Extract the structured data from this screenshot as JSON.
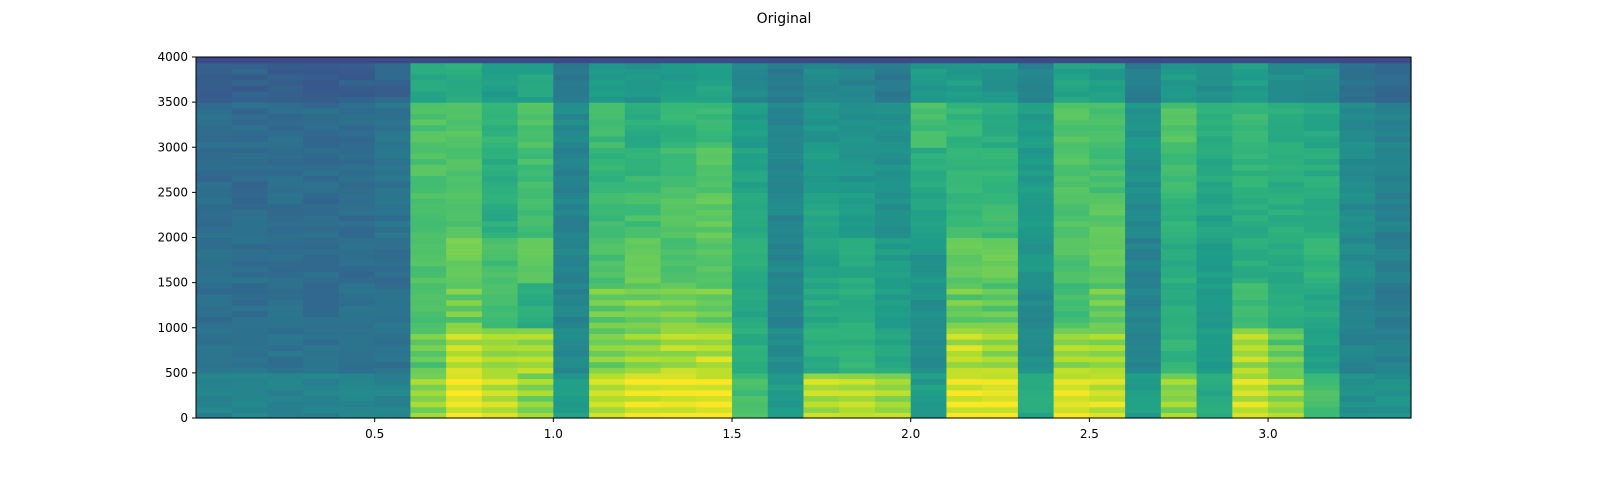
{
  "chart_data": {
    "type": "heatmap",
    "title": "Original",
    "xlabel": "",
    "ylabel": "",
    "xlim": [
      0,
      3.4
    ],
    "ylim": [
      0,
      4000
    ],
    "xticks": [
      0.5,
      1.0,
      1.5,
      2.0,
      2.5,
      3.0
    ],
    "xtick_labels": [
      "0.5",
      "1.0",
      "1.5",
      "2.0",
      "2.5",
      "3.0"
    ],
    "yticks": [
      0,
      500,
      1000,
      1500,
      2000,
      2500,
      3000,
      3500,
      4000
    ],
    "ytick_labels": [
      "0",
      "500",
      "1000",
      "1500",
      "2000",
      "2500",
      "3000",
      "3500",
      "4000"
    ],
    "colormap": "viridis",
    "time_bin_s": 0.1,
    "freq_band_hz": 500,
    "value_scale": "normalized intensity 0-1",
    "intensity": [
      [
        0.45,
        0.38,
        0.36,
        0.36,
        0.36,
        0.35,
        0.36,
        0.3
      ],
      [
        0.45,
        0.38,
        0.36,
        0.36,
        0.35,
        0.35,
        0.35,
        0.3
      ],
      [
        0.45,
        0.38,
        0.36,
        0.35,
        0.35,
        0.35,
        0.35,
        0.3
      ],
      [
        0.45,
        0.37,
        0.36,
        0.35,
        0.35,
        0.35,
        0.35,
        0.3
      ],
      [
        0.45,
        0.37,
        0.36,
        0.35,
        0.35,
        0.35,
        0.35,
        0.3
      ],
      [
        0.45,
        0.38,
        0.37,
        0.36,
        0.38,
        0.38,
        0.38,
        0.32
      ],
      [
        0.8,
        0.72,
        0.7,
        0.72,
        0.72,
        0.72,
        0.72,
        0.6
      ],
      [
        0.92,
        0.85,
        0.72,
        0.78,
        0.72,
        0.72,
        0.72,
        0.62
      ],
      [
        0.88,
        0.82,
        0.7,
        0.7,
        0.62,
        0.62,
        0.65,
        0.55
      ],
      [
        0.78,
        0.82,
        0.62,
        0.76,
        0.68,
        0.7,
        0.72,
        0.58
      ],
      [
        0.55,
        0.48,
        0.45,
        0.45,
        0.45,
        0.45,
        0.48,
        0.4
      ],
      [
        0.88,
        0.75,
        0.72,
        0.7,
        0.68,
        0.66,
        0.68,
        0.55
      ],
      [
        0.92,
        0.8,
        0.74,
        0.78,
        0.7,
        0.66,
        0.62,
        0.52
      ],
      [
        0.92,
        0.82,
        0.76,
        0.72,
        0.72,
        0.7,
        0.65,
        0.55
      ],
      [
        0.93,
        0.85,
        0.72,
        0.74,
        0.75,
        0.72,
        0.68,
        0.58
      ],
      [
        0.7,
        0.62,
        0.6,
        0.62,
        0.6,
        0.58,
        0.55,
        0.48
      ],
      [
        0.55,
        0.48,
        0.45,
        0.46,
        0.46,
        0.45,
        0.45,
        0.42
      ],
      [
        0.85,
        0.62,
        0.6,
        0.58,
        0.58,
        0.55,
        0.52,
        0.48
      ],
      [
        0.85,
        0.65,
        0.62,
        0.6,
        0.55,
        0.52,
        0.5,
        0.45
      ],
      [
        0.82,
        0.6,
        0.55,
        0.55,
        0.5,
        0.5,
        0.5,
        0.4
      ],
      [
        0.55,
        0.5,
        0.5,
        0.52,
        0.58,
        0.62,
        0.7,
        0.55
      ],
      [
        0.92,
        0.85,
        0.72,
        0.75,
        0.68,
        0.65,
        0.65,
        0.55
      ],
      [
        0.92,
        0.82,
        0.72,
        0.78,
        0.68,
        0.66,
        0.62,
        0.52
      ],
      [
        0.6,
        0.5,
        0.48,
        0.52,
        0.55,
        0.55,
        0.55,
        0.45
      ],
      [
        0.9,
        0.8,
        0.7,
        0.72,
        0.72,
        0.72,
        0.72,
        0.58
      ],
      [
        0.88,
        0.8,
        0.72,
        0.75,
        0.74,
        0.7,
        0.7,
        0.55
      ],
      [
        0.55,
        0.45,
        0.45,
        0.45,
        0.48,
        0.5,
        0.52,
        0.42
      ],
      [
        0.78,
        0.65,
        0.62,
        0.62,
        0.65,
        0.68,
        0.72,
        0.55
      ],
      [
        0.6,
        0.55,
        0.55,
        0.55,
        0.58,
        0.6,
        0.62,
        0.5
      ],
      [
        0.88,
        0.82,
        0.68,
        0.62,
        0.62,
        0.65,
        0.68,
        0.55
      ],
      [
        0.8,
        0.72,
        0.62,
        0.6,
        0.62,
        0.62,
        0.62,
        0.5
      ],
      [
        0.7,
        0.58,
        0.6,
        0.65,
        0.62,
        0.62,
        0.6,
        0.48
      ],
      [
        0.5,
        0.45,
        0.45,
        0.48,
        0.48,
        0.48,
        0.48,
        0.38
      ],
      [
        0.5,
        0.44,
        0.42,
        0.44,
        0.44,
        0.45,
        0.45,
        0.35
      ]
    ]
  }
}
